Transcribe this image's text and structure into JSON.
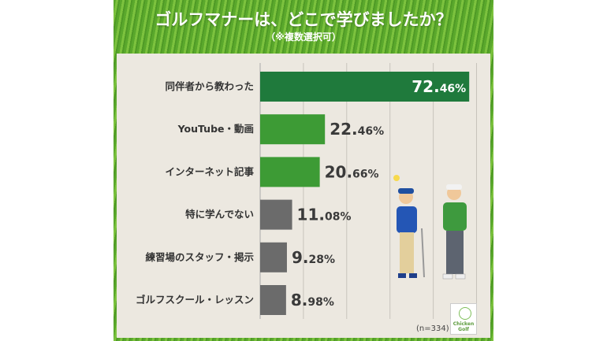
{
  "header": {
    "title": "ゴルフマナーは、どこで学びましたか？",
    "subtitle": "（※複数選択可）"
  },
  "chart_data": {
    "type": "bar",
    "orientation": "horizontal",
    "title": "ゴルフマナーは、どこで学びましたか？",
    "subtitle": "（※複数選択可）",
    "categories": [
      "同伴者から教わった",
      "YouTube・動画",
      "インターネット記事",
      "特に学んでない",
      "練習場のスタッフ・掲示",
      "ゴルフスクール・レッスン"
    ],
    "values": [
      72.46,
      22.46,
      20.66,
      11.08,
      9.28,
      8.98
    ],
    "labels": [
      [
        "72.",
        "46%"
      ],
      [
        "22.",
        "46%"
      ],
      [
        "20.",
        "66%"
      ],
      [
        "11.",
        "08%"
      ],
      [
        "9.",
        "28%"
      ],
      [
        "8.",
        "98%"
      ]
    ],
    "colors": [
      "#1f7a3c",
      "#3d9b35",
      "#3d9b35",
      "#6b6b6b",
      "#6b6b6b",
      "#6b6b6b"
    ],
    "xlim": [
      0,
      80
    ],
    "grid": true,
    "unit": "%"
  },
  "footer": {
    "sample_size": "(n=334)",
    "logo_text": "Chicken Golf"
  }
}
